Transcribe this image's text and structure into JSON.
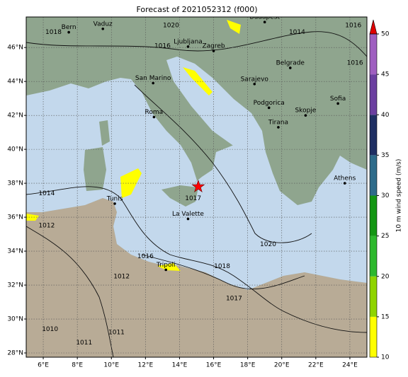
{
  "title": "Forecast of 2021052312 (f000)",
  "xlim": [
    5,
    25
  ],
  "ylim": [
    27.75,
    47.8
  ],
  "xticks": [
    {
      "value": 6,
      "label": "6°E"
    },
    {
      "value": 8,
      "label": "8°E"
    },
    {
      "value": 10,
      "label": "10°E"
    },
    {
      "value": 12,
      "label": "12°E"
    },
    {
      "value": 14,
      "label": "14°E"
    },
    {
      "value": 16,
      "label": "16°E"
    },
    {
      "value": 18,
      "label": "18°E"
    },
    {
      "value": 20,
      "label": "20°E"
    },
    {
      "value": 22,
      "label": "22°E"
    },
    {
      "value": 24,
      "label": "24°E"
    }
  ],
  "yticks": [
    {
      "value": 28,
      "label": "28°N"
    },
    {
      "value": 30,
      "label": "30°N"
    },
    {
      "value": 32,
      "label": "32°N"
    },
    {
      "value": 34,
      "label": "34°N"
    },
    {
      "value": 36,
      "label": "36°N"
    },
    {
      "value": 38,
      "label": "38°N"
    },
    {
      "value": 40,
      "label": "40°N"
    },
    {
      "value": 42,
      "label": "42°N"
    },
    {
      "value": 44,
      "label": "44°N"
    },
    {
      "value": 46,
      "label": "46°N"
    }
  ],
  "grid": true,
  "cities": [
    {
      "name": "Bern",
      "lon": 7.5,
      "lat": 46.9
    },
    {
      "name": "Vaduz",
      "lon": 9.5,
      "lat": 47.1
    },
    {
      "name": "Budapest",
      "lon": 19.0,
      "lat": 47.5
    },
    {
      "name": "Ljubljana",
      "lon": 14.5,
      "lat": 46.05
    },
    {
      "name": "Zagreb",
      "lon": 16.0,
      "lat": 45.8
    },
    {
      "name": "San Marino",
      "lon": 12.45,
      "lat": 43.9
    },
    {
      "name": "Belgrade",
      "lon": 20.5,
      "lat": 44.8
    },
    {
      "name": "Sarajevo",
      "lon": 18.4,
      "lat": 43.85
    },
    {
      "name": "Podgorica",
      "lon": 19.25,
      "lat": 42.45
    },
    {
      "name": "Skopje",
      "lon": 21.4,
      "lat": 42.0
    },
    {
      "name": "Tirana",
      "lon": 19.8,
      "lat": 41.3
    },
    {
      "name": "Sofia",
      "lon": 23.3,
      "lat": 42.7
    },
    {
      "name": "Roma",
      "lon": 12.5,
      "lat": 41.9
    },
    {
      "name": "Tunis",
      "lon": 10.2,
      "lat": 36.8
    },
    {
      "name": "La Valette",
      "lon": 14.5,
      "lat": 35.9
    },
    {
      "name": "Tripoli",
      "lon": 13.2,
      "lat": 32.9
    },
    {
      "name": "Athens",
      "lon": 23.7,
      "lat": 38.0
    }
  ],
  "storm_center": {
    "lon": 15.1,
    "lat": 37.8,
    "color": "#ff0000"
  },
  "isobar_labels": [
    {
      "text": "1018",
      "lon": 6.6,
      "lat": 46.9
    },
    {
      "text": "1020",
      "lon": 13.5,
      "lat": 47.3
    },
    {
      "text": "1016",
      "lon": 13.0,
      "lat": 46.1
    },
    {
      "text": "1014",
      "lon": 20.9,
      "lat": 46.9
    },
    {
      "text": "1016",
      "lon": 24.2,
      "lat": 47.3
    },
    {
      "text": "1016",
      "lon": 24.3,
      "lat": 45.1
    },
    {
      "text": "1014",
      "lon": 6.2,
      "lat": 37.4
    },
    {
      "text": "1012",
      "lon": 6.2,
      "lat": 35.5
    },
    {
      "text": "1016",
      "lon": 12.0,
      "lat": 33.7
    },
    {
      "text": "1018",
      "lon": 16.5,
      "lat": 33.1
    },
    {
      "text": "1020",
      "lon": 19.2,
      "lat": 34.4
    },
    {
      "text": "1017",
      "lon": 17.2,
      "lat": 31.2
    },
    {
      "text": "1012",
      "lon": 10.6,
      "lat": 32.5
    },
    {
      "text": "1011",
      "lon": 10.3,
      "lat": 29.2
    },
    {
      "text": "1011",
      "lon": 8.4,
      "lat": 28.6
    },
    {
      "text": "1010",
      "lon": 6.4,
      "lat": 29.4
    },
    {
      "text": "1017",
      "lon": 14.8,
      "lat": 37.1
    }
  ],
  "colorbar": {
    "label": "10 m wind speed (m/s)",
    "lim": [
      10,
      50
    ],
    "ticks": [
      10,
      15,
      20,
      25,
      30,
      35,
      40,
      45,
      50
    ],
    "colors": [
      "#ffff00",
      "#8fd400",
      "#2db82d",
      "#149614",
      "#2e6b8a",
      "#1f2f63",
      "#6b3fa0",
      "#9f5fc0"
    ],
    "extend_color": "#e00000"
  }
}
